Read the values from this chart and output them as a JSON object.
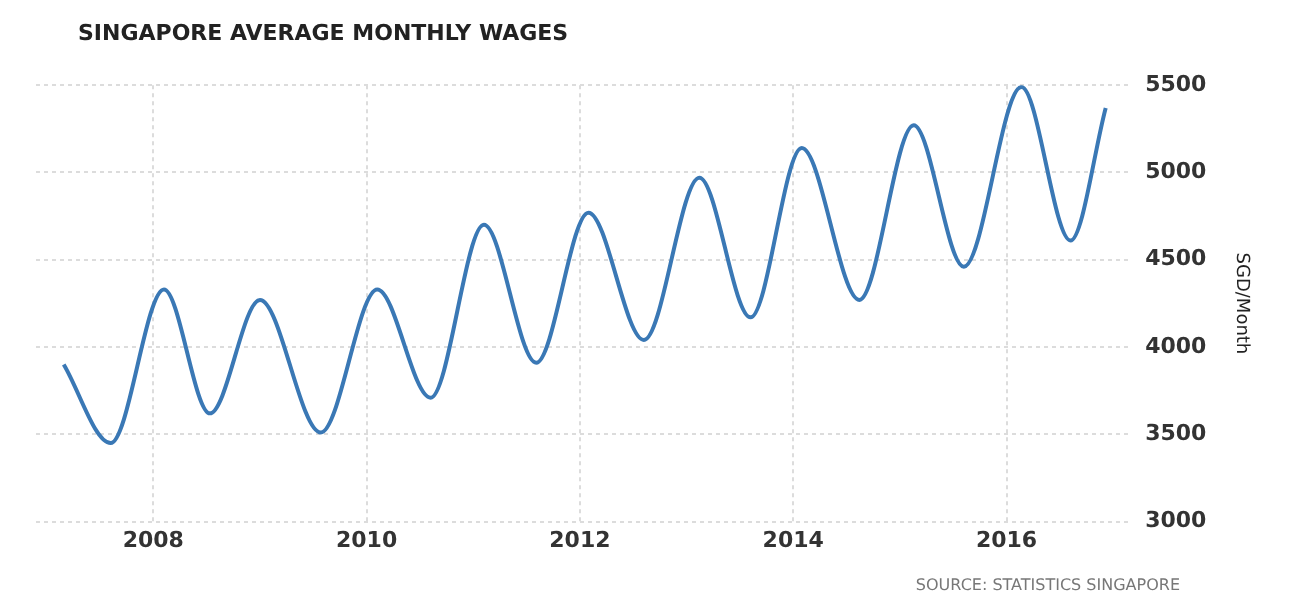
{
  "chart_data": {
    "type": "line",
    "title": "SINGAPORE AVERAGE MONTHLY WAGES",
    "y2label": "SGD/Month",
    "annotations": [
      "SOURCE: STATISTICS SINGAPORE"
    ],
    "x": [
      2007.16,
      2007.6,
      2008.1,
      2008.53,
      2009.0,
      2009.57,
      2010.1,
      2010.6,
      2011.1,
      2011.59,
      2012.08,
      2012.6,
      2013.12,
      2013.6,
      2014.08,
      2014.62,
      2015.13,
      2015.6,
      2016.14,
      2016.6,
      2016.93
    ],
    "series": [
      {
        "color": "#3a78b5",
        "axis": "y2",
        "values": [
          3900,
          3450,
          4330,
          3620,
          4270,
          3510,
          4330,
          3710,
          4700,
          3910,
          4770,
          4040,
          4970,
          4170,
          5140,
          4270,
          5270,
          4460,
          5490,
          4610,
          5370
        ]
      }
    ],
    "xlim": [
      2006.9,
      2017.15
    ],
    "xticks": [
      2008,
      2010,
      2012,
      2014,
      2016
    ],
    "y2lim": [
      3000,
      5500
    ],
    "y2ticks": [
      3000,
      3500,
      4000,
      4500,
      5000,
      5500
    ],
    "grid": true,
    "legend": false,
    "marker": "none",
    "line_style": "solid"
  }
}
